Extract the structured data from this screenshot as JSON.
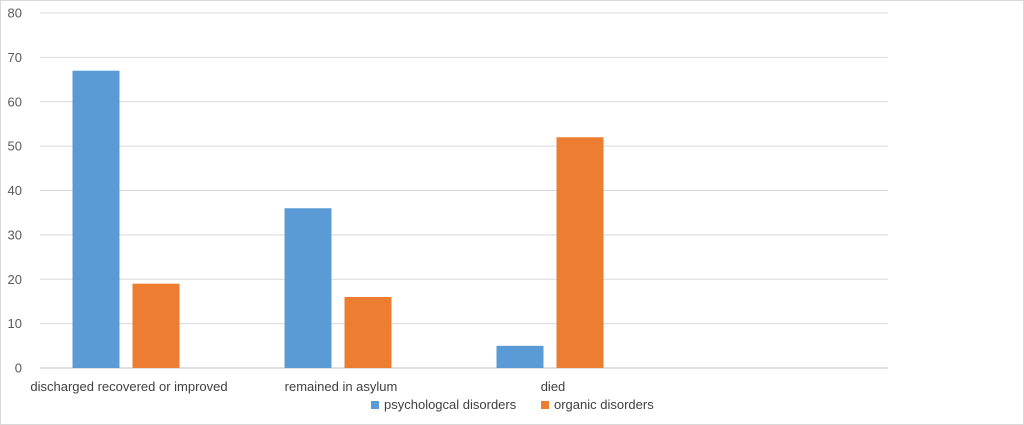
{
  "chart_data": {
    "type": "bar",
    "categories": [
      "discharged recovered or improved",
      "remained in asylum",
      "died"
    ],
    "series": [
      {
        "name": "psychologcal disorders",
        "values": [
          67,
          36,
          5
        ],
        "color": "#5b9bd5"
      },
      {
        "name": "organic disorders",
        "values": [
          19,
          16,
          52
        ],
        "color": "#ed7d31"
      }
    ],
    "title": "",
    "xlabel": "",
    "ylabel": "",
    "ylim": [
      0,
      80
    ],
    "yticks": [
      0,
      10,
      20,
      30,
      40,
      50,
      60,
      70,
      80
    ],
    "grid": true,
    "legend": "bottom-center"
  }
}
